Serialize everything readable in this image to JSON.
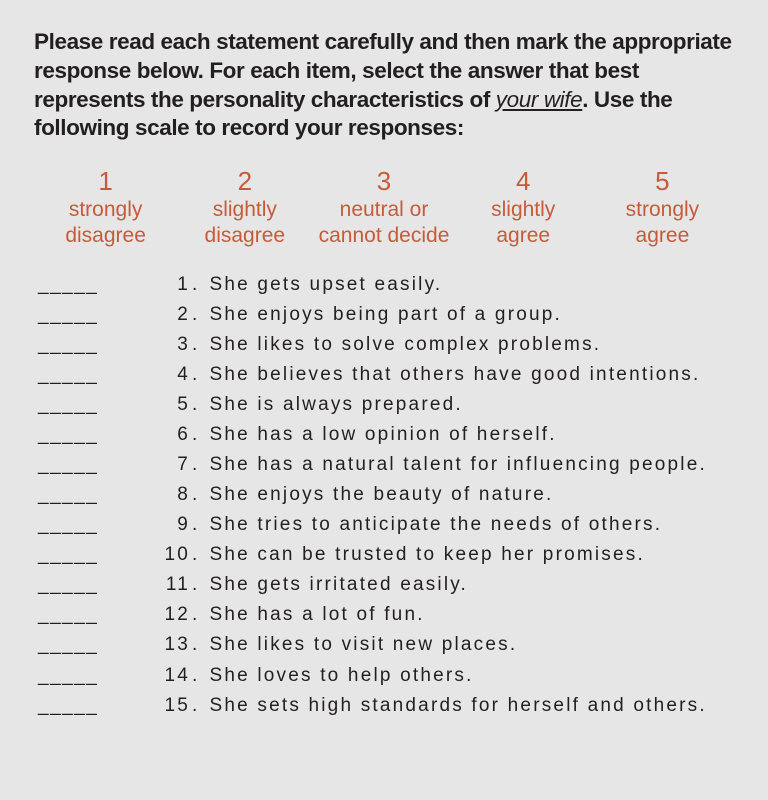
{
  "colors": {
    "background": "#e6e6e6",
    "text": "#231f20",
    "scale": "#c75b39"
  },
  "instructions": {
    "before": "Please read each statement carefully and then mark the appropriate response below. For each item, select the answer that best represents the personality characteristics of ",
    "subject": "your wife",
    "after": ". Use the following scale to record your responses:"
  },
  "scale": [
    {
      "num": "1",
      "label": "strongly\ndisagree"
    },
    {
      "num": "2",
      "label": "slightly\ndisagree"
    },
    {
      "num": "3",
      "label": "neutral or\ncannot decide"
    },
    {
      "num": "4",
      "label": "slightly\nagree"
    },
    {
      "num": "5",
      "label": "strongly\nagree"
    }
  ],
  "blank_underscore": "_____",
  "items": [
    {
      "n": "1",
      "text": "She gets upset easily."
    },
    {
      "n": "2",
      "text": "She enjoys being part of a group."
    },
    {
      "n": "3",
      "text": "She likes to solve complex problems."
    },
    {
      "n": "4",
      "text": "She believes that others have good intentions."
    },
    {
      "n": "5",
      "text": "She is always prepared."
    },
    {
      "n": "6",
      "text": "She has a low opinion of herself."
    },
    {
      "n": "7",
      "text": "She has a natural talent for influencing people."
    },
    {
      "n": "8",
      "text": "She enjoys the beauty of nature."
    },
    {
      "n": "9",
      "text": "She tries to anticipate the needs of others."
    },
    {
      "n": "10",
      "text": "She can be trusted to keep her promises."
    },
    {
      "n": "11",
      "text": "She gets irritated easily."
    },
    {
      "n": "12",
      "text": "She has a lot of fun."
    },
    {
      "n": "13",
      "text": "She likes to visit new places."
    },
    {
      "n": "14",
      "text": "She loves to help others."
    },
    {
      "n": "15",
      "text": "She sets high standards for herself and others."
    }
  ]
}
